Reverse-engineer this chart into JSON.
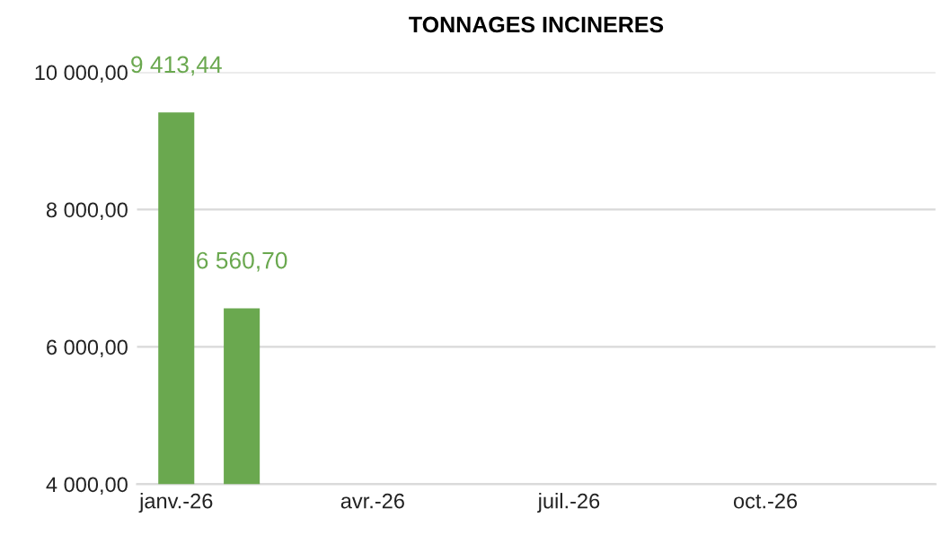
{
  "chart_data": {
    "type": "bar",
    "title": "TONNAGES INCINERES",
    "categories": [
      "janv.-26",
      null,
      null,
      "avr.-26",
      null,
      null,
      "juil.-26",
      null,
      null,
      "oct.-26",
      null,
      null
    ],
    "values": [
      9413.44,
      6560.7,
      null,
      null,
      null,
      null,
      null,
      null,
      null,
      null,
      null,
      null
    ],
    "value_labels": [
      "9 413,44",
      "6 560,70",
      null,
      null,
      null,
      null,
      null,
      null,
      null,
      null,
      null,
      null
    ],
    "color": "#6aa84f",
    "ylim": [
      4000,
      10000
    ],
    "yticks": [
      {
        "value": 4000,
        "label": "4 000,00"
      },
      {
        "value": 6000,
        "label": "6 000,00"
      },
      {
        "value": 8000,
        "label": "8 000,00"
      },
      {
        "value": 10000,
        "label": "10 000,00"
      }
    ],
    "grid": "y",
    "legend": false
  }
}
